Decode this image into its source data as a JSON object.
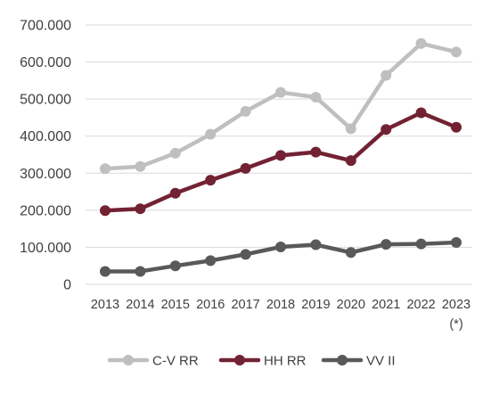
{
  "chart_data": {
    "type": "line",
    "categories": [
      "2013",
      "2014",
      "2015",
      "2016",
      "2017",
      "2018",
      "2019",
      "2020",
      "2021",
      "2022",
      "2023"
    ],
    "category_note": {
      "category": "2023",
      "text": "(*)"
    },
    "y_tick_labels": [
      "0",
      "100.000",
      "200.000",
      "300.000",
      "400.000",
      "500.000",
      "600.000",
      "700.000"
    ],
    "ylim": [
      0,
      700000
    ],
    "grid": true,
    "legend_position": "bottom",
    "series": [
      {
        "name": "C-V RR",
        "color": "#bfbfbf",
        "values": [
          312000,
          318000,
          354000,
          405000,
          467000,
          518000,
          505000,
          420000,
          564000,
          650000,
          627000
        ]
      },
      {
        "name": "HH RR",
        "color": "#722233",
        "values": [
          199000,
          204000,
          246000,
          281000,
          313000,
          348000,
          357000,
          334000,
          418000,
          463000,
          424000
        ]
      },
      {
        "name": "VV II",
        "color": "#595959",
        "values": [
          35000,
          35000,
          50000,
          64000,
          81000,
          101000,
          107000,
          86000,
          108000,
          109000,
          113000
        ]
      }
    ]
  }
}
